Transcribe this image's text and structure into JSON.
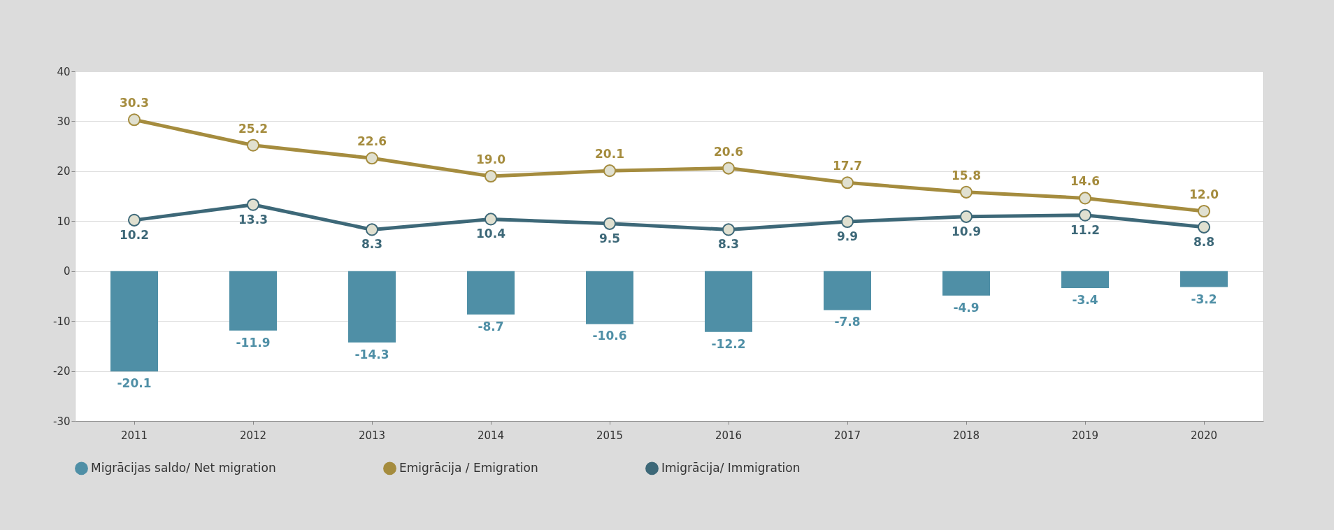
{
  "chart_data": {
    "type": "bar",
    "categories": [
      "2011",
      "2012",
      "2013",
      "2014",
      "2015",
      "2016",
      "2017",
      "2018",
      "2019",
      "2020"
    ],
    "series": [
      {
        "name": "Migrācijas saldo/ Net migration",
        "color": "#4f8fa6",
        "values": [
          -20.1,
          -11.9,
          -14.3,
          -8.7,
          -10.6,
          -12.2,
          -7.8,
          -4.9,
          -3.4,
          -3.2
        ]
      },
      {
        "name": "Emigrācija / Emigration",
        "type": "line",
        "color": "#a58c3e",
        "values": [
          30.3,
          25.2,
          22.6,
          19.0,
          20.1,
          20.6,
          17.7,
          15.8,
          14.6,
          12.0
        ],
        "value_labels": [
          "30.3",
          "25.2",
          "22.6",
          "19.0",
          "20.1",
          "20.6",
          "17.7",
          "15.8",
          "14.6",
          "12.0"
        ]
      },
      {
        "name": "Imigrācija/ Immigration",
        "type": "line",
        "color": "#3d6878",
        "values": [
          10.2,
          13.3,
          8.3,
          10.4,
          9.5,
          8.3,
          9.9,
          10.9,
          11.2,
          8.8
        ]
      }
    ],
    "ylim": [
      -30,
      40
    ],
    "yticks": [
      -30,
      -20,
      -10,
      0,
      10,
      20,
      30,
      40
    ],
    "grid": "y",
    "legend": "bottom",
    "marker": "circle",
    "data_labels": true
  }
}
